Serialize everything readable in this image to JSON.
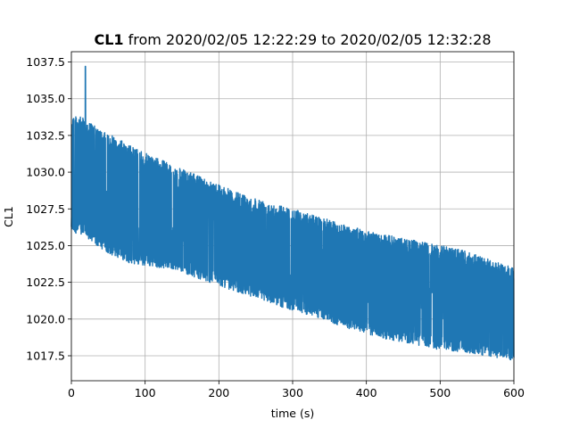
{
  "chart_data": {
    "type": "line",
    "title_bold": "CL1",
    "title_rest": " from 2020/02/05 12:22:29 to 2020/02/05 12:32:28",
    "xlabel": "time (s)",
    "ylabel": "CL1",
    "xlim": [
      0,
      600
    ],
    "ylim": [
      1015.8,
      1038.2
    ],
    "xticks": [
      0,
      100,
      200,
      300,
      400,
      500,
      600
    ],
    "yticks": [
      1017.5,
      1020.0,
      1022.5,
      1025.0,
      1027.5,
      1030.0,
      1032.5,
      1035.0,
      1037.5
    ],
    "xtick_labels": [
      "0",
      "100",
      "200",
      "300",
      "400",
      "500",
      "600"
    ],
    "ytick_labels": [
      "1017.5",
      "1020.0",
      "1022.5",
      "1025.0",
      "1027.5",
      "1030.0",
      "1032.5",
      "1035.0",
      "1037.5"
    ],
    "grid": true,
    "color": "#1f77b4",
    "series": [
      {
        "x": [
          0,
          20,
          40,
          60,
          80,
          100,
          120,
          140,
          160,
          180,
          200,
          220,
          240,
          260,
          280,
          300,
          320,
          340,
          360,
          380,
          400,
          420,
          440,
          460,
          480,
          500,
          520,
          540,
          560,
          580,
          600
        ],
        "upper": [
          1034.0,
          1033.6,
          1032.8,
          1032.4,
          1031.8,
          1031.3,
          1030.9,
          1030.4,
          1030.0,
          1029.6,
          1029.2,
          1028.7,
          1028.4,
          1028.1,
          1027.8,
          1027.5,
          1027.2,
          1026.9,
          1026.6,
          1026.3,
          1026.0,
          1025.8,
          1025.6,
          1025.4,
          1025.2,
          1025.0,
          1024.9,
          1024.5,
          1024.2,
          1023.8,
          1023.5
        ],
        "lower": [
          1026.0,
          1025.5,
          1024.8,
          1024.2,
          1023.8,
          1023.6,
          1023.5,
          1023.4,
          1023.0,
          1022.6,
          1022.3,
          1021.9,
          1021.6,
          1021.3,
          1020.9,
          1020.6,
          1020.3,
          1020.0,
          1019.6,
          1019.3,
          1019.0,
          1018.7,
          1018.5,
          1018.3,
          1018.1,
          1017.9,
          1017.8,
          1017.6,
          1017.5,
          1017.3,
          1017.2
        ],
        "spike": {
          "x": 19,
          "y": 1037.2
        }
      }
    ]
  }
}
